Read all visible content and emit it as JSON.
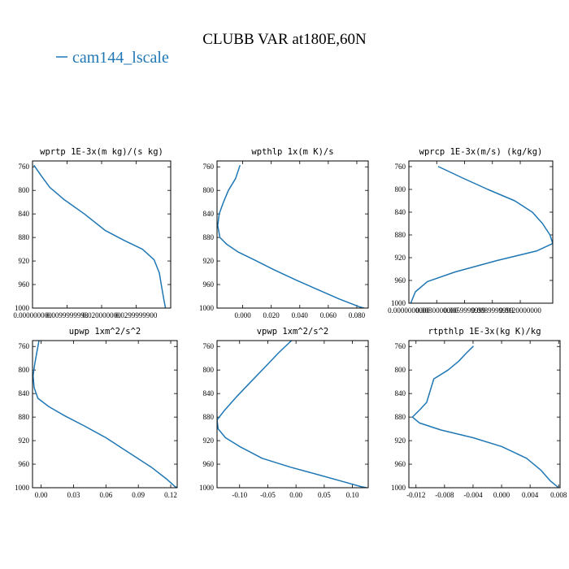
{
  "figure": {
    "title": "CLUBB VAR at180E,60N",
    "legend": [
      {
        "label": "cam144_lscale",
        "color": "#1f77b4"
      }
    ]
  },
  "chart_data": [
    {
      "type": "line",
      "title": "wprtp  1E-3x(m kg)/(s kg)",
      "xlim": [
        0.0,
        0.04
      ],
      "ylim": [
        1000,
        750
      ],
      "yticks": [
        1000,
        960,
        920,
        880,
        840,
        800,
        760
      ],
      "xticks": [
        0.0,
        0.01,
        0.02,
        0.03
      ],
      "xtick_labels": [
        "0.000000000",
        "0.0099999998",
        "0.020000000",
        "0.0299999900"
      ],
      "series": [
        {
          "name": "cam144_lscale",
          "points": [
            [
              0.0005,
              758
            ],
            [
              0.0025,
              775
            ],
            [
              0.005,
              795
            ],
            [
              0.009,
              815
            ],
            [
              0.015,
              840
            ],
            [
              0.021,
              868
            ],
            [
              0.0265,
              885
            ],
            [
              0.0318,
              900
            ],
            [
              0.0352,
              918
            ],
            [
              0.0367,
              940
            ],
            [
              0.0374,
              965
            ],
            [
              0.038,
              985
            ],
            [
              0.0385,
              1000
            ]
          ]
        }
      ]
    },
    {
      "type": "line",
      "title": "wpthlp  1x(m K)/s",
      "xlim": [
        -0.018,
        0.088
      ],
      "ylim": [
        1000,
        750
      ],
      "yticks": [
        1000,
        960,
        920,
        880,
        840,
        800,
        760
      ],
      "xticks": [
        0.0,
        0.02,
        0.04,
        0.06,
        0.08
      ],
      "xtick_labels": [
        "0.000",
        "0.020",
        "0.040",
        "0.060",
        "0.080"
      ],
      "series": [
        {
          "name": "cam144_lscale",
          "points": [
            [
              -0.002,
              758
            ],
            [
              -0.005,
              780
            ],
            [
              -0.01,
              800
            ],
            [
              -0.0135,
              820
            ],
            [
              -0.0165,
              840
            ],
            [
              -0.0175,
              860
            ],
            [
              -0.016,
              880
            ],
            [
              -0.011,
              892
            ],
            [
              -0.003,
              905
            ],
            [
              0.008,
              918
            ],
            [
              0.022,
              935
            ],
            [
              0.037,
              952
            ],
            [
              0.052,
              968
            ],
            [
              0.068,
              985
            ],
            [
              0.082,
              998
            ],
            [
              0.085,
              1000
            ]
          ]
        }
      ]
    },
    {
      "type": "line",
      "title": "wprcp  1E-3x(m/s) (kg/kg)",
      "xlim": [
        0.0,
        0.0155
      ],
      "ylim": [
        1000,
        750
      ],
      "yticks": [
        1000,
        960,
        920,
        880,
        840,
        800,
        760
      ],
      "xticks": [
        0.0,
        0.003,
        0.006,
        0.009,
        0.012
      ],
      "xtick_labels": [
        "0.0000000000",
        "0.0030000000",
        "0.0059999999",
        "0.0089999999",
        "0.0120000000"
      ],
      "series": [
        {
          "name": "cam144_lscale",
          "points": [
            [
              0.0032,
              760
            ],
            [
              0.0058,
              780
            ],
            [
              0.0085,
              800
            ],
            [
              0.0114,
              820
            ],
            [
              0.0133,
              840
            ],
            [
              0.0144,
              860
            ],
            [
              0.0152,
              880
            ],
            [
              0.0155,
              895
            ],
            [
              0.0138,
              908
            ],
            [
              0.0095,
              925
            ],
            [
              0.005,
              945
            ],
            [
              0.002,
              962
            ],
            [
              0.0007,
              980
            ],
            [
              0.0002,
              1000
            ]
          ]
        }
      ]
    },
    {
      "type": "line",
      "title": "upwp  1xm^2/s^2",
      "xlim": [
        -0.008,
        0.126
      ],
      "ylim": [
        1000,
        750
      ],
      "yticks": [
        1000,
        960,
        920,
        880,
        840,
        800,
        760
      ],
      "xticks": [
        0.0,
        0.03,
        0.06,
        0.09,
        0.12
      ],
      "xtick_labels": [
        "0.00",
        "0.03",
        "0.06",
        "0.09",
        "0.12"
      ],
      "series": [
        {
          "name": "cam144_lscale",
          "points": [
            [
              -0.002,
              750
            ],
            [
              -0.004,
              770
            ],
            [
              -0.006,
              790
            ],
            [
              -0.0075,
              810
            ],
            [
              -0.0065,
              830
            ],
            [
              -0.003,
              848
            ],
            [
              0.007,
              862
            ],
            [
              0.022,
              878
            ],
            [
              0.04,
              895
            ],
            [
              0.06,
              915
            ],
            [
              0.081,
              940
            ],
            [
              0.102,
              965
            ],
            [
              0.116,
              985
            ],
            [
              0.124,
              998
            ],
            [
              0.126,
              1000
            ]
          ]
        }
      ]
    },
    {
      "type": "line",
      "title": "vpwp  1xm^2/s^2",
      "xlim": [
        -0.14,
        0.128
      ],
      "ylim": [
        1000,
        750
      ],
      "yticks": [
        1000,
        960,
        920,
        880,
        840,
        800,
        760
      ],
      "xticks": [
        -0.1,
        -0.05,
        0.0,
        0.05,
        0.1
      ],
      "xtick_labels": [
        "-0.10",
        "-0.05",
        "0.00",
        "0.05",
        "0.10"
      ],
      "series": [
        {
          "name": "cam144_lscale",
          "points": [
            [
              -0.008,
              750
            ],
            [
              -0.03,
              770
            ],
            [
              -0.055,
              795
            ],
            [
              -0.08,
              820
            ],
            [
              -0.105,
              845
            ],
            [
              -0.128,
              870
            ],
            [
              -0.14,
              885
            ],
            [
              -0.138,
              900
            ],
            [
              -0.125,
              915
            ],
            [
              -0.1,
              930
            ],
            [
              -0.06,
              950
            ],
            [
              -0.01,
              965
            ],
            [
              0.04,
              978
            ],
            [
              0.085,
              990
            ],
            [
              0.115,
              998
            ],
            [
              0.125,
              1000
            ]
          ]
        }
      ]
    },
    {
      "type": "line",
      "title": "rtpthlp  1E-3x(kg K)/kg",
      "xlim": [
        -0.013,
        0.0082
      ],
      "ylim": [
        1000,
        750
      ],
      "yticks": [
        1000,
        960,
        920,
        880,
        840,
        800,
        760
      ],
      "xticks": [
        -0.012,
        -0.008,
        -0.004,
        0.0,
        0.004,
        0.008
      ],
      "xtick_labels": [
        "-0.012",
        "-0.008",
        "-0.004",
        "0.000",
        "0.004",
        "0.008"
      ],
      "series": [
        {
          "name": "cam144_lscale",
          "points": [
            [
              -0.004,
              760
            ],
            [
              -0.005,
              772
            ],
            [
              -0.006,
              785
            ],
            [
              -0.0075,
              800
            ],
            [
              -0.0095,
              815
            ],
            [
              -0.01,
              835
            ],
            [
              -0.0105,
              855
            ],
            [
              -0.0115,
              868
            ],
            [
              -0.0125,
              880
            ],
            [
              -0.0115,
              890
            ],
            [
              -0.0085,
              902
            ],
            [
              -0.004,
              915
            ],
            [
              0.0,
              930
            ],
            [
              0.0035,
              950
            ],
            [
              0.0055,
              970
            ],
            [
              0.0068,
              988
            ],
            [
              0.0078,
              998
            ],
            [
              0.008,
              1000
            ]
          ]
        }
      ]
    }
  ]
}
